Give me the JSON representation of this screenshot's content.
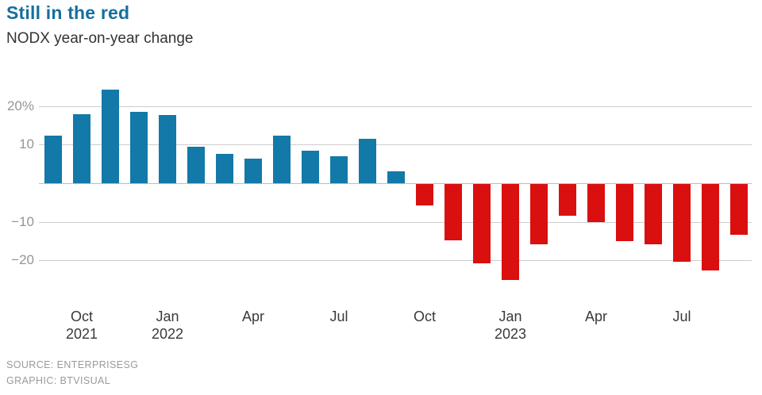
{
  "header": {
    "title": "Still in the red",
    "subtitle": "NODX year-on-year change"
  },
  "chart_data": {
    "type": "bar",
    "title": "Still in the red",
    "subtitle": "NODX year-on-year change",
    "unit": "percent",
    "categories": [
      "Sep 2021",
      "Oct 2021",
      "Nov 2021",
      "Dec 2021",
      "Jan 2022",
      "Feb 2022",
      "Mar 2022",
      "Apr 2022",
      "May 2022",
      "Jun 2022",
      "Jul 2022",
      "Aug 2022",
      "Sep 2022",
      "Oct 2022",
      "Nov 2022",
      "Dec 2022",
      "Jan 2023",
      "Feb 2023",
      "Mar 2023",
      "Apr 2023",
      "May 2023",
      "Jun 2023",
      "Jul 2023",
      "Aug 2023",
      "Sep 2023"
    ],
    "values": [
      12.3,
      17.9,
      24.2,
      18.4,
      17.6,
      9.4,
      7.7,
      6.4,
      12.4,
      8.5,
      7.0,
      11.4,
      3.1,
      -5.6,
      -14.6,
      -20.6,
      -24.8,
      -15.6,
      -8.3,
      -9.8,
      -14.7,
      -15.6,
      -20.2,
      -22.4,
      -13.2
    ],
    "ylim": [
      -26,
      26
    ],
    "grid": "horizontal",
    "legend": "none",
    "yticks": [
      {
        "value": 20,
        "label": "20%"
      },
      {
        "value": 10,
        "label": "10"
      },
      {
        "value": 0,
        "label": ""
      },
      {
        "value": -10,
        "label": "−10"
      },
      {
        "value": -20,
        "label": "−20"
      }
    ],
    "xticks": [
      {
        "month_index": 1,
        "line1": "Oct",
        "line2": "2021"
      },
      {
        "month_index": 4,
        "line1": "Jan",
        "line2": "2022"
      },
      {
        "month_index": 7,
        "line1": "Apr",
        "line2": ""
      },
      {
        "month_index": 10,
        "line1": "Jul",
        "line2": ""
      },
      {
        "month_index": 13,
        "line1": "Oct",
        "line2": ""
      },
      {
        "month_index": 16,
        "line1": "Jan",
        "line2": "2023"
      },
      {
        "month_index": 19,
        "line1": "Apr",
        "line2": ""
      },
      {
        "month_index": 22,
        "line1": "Jul",
        "line2": ""
      }
    ],
    "colors": {
      "positive_bar": "#1379a8",
      "negative_bar": "#d9100f",
      "title_text": "#166f9d",
      "subtitle_text": "#333333",
      "gridline": "#cdcdcd",
      "zero_line": "#bdbdbd",
      "ytick_text": "#959595",
      "xtick_text": "#3a3a3a",
      "footer_text": "#9a9a9a"
    }
  },
  "footer": {
    "source": "SOURCE: ENTERPRISESG",
    "graphic": "GRAPHIC: BTVISUAL"
  }
}
